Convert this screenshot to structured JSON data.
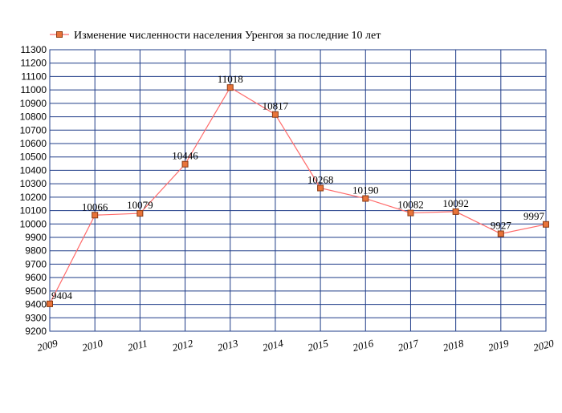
{
  "chart_data": {
    "type": "line",
    "title": "",
    "xlabel": "",
    "ylabel": "",
    "categories": [
      "2009",
      "2010",
      "2011",
      "2012",
      "2013",
      "2014",
      "2015",
      "2016",
      "2017",
      "2018",
      "2019",
      "2020"
    ],
    "series": [
      {
        "name": "Изменение численности населения Уренгоя за последние 10 лет",
        "values": [
          9404,
          10066,
          10079,
          10446,
          11018,
          10817,
          10268,
          10190,
          10082,
          10092,
          9927,
          9997
        ],
        "color": "#ff6b6b",
        "marker_color": "#e8733a"
      }
    ],
    "data_labels": [
      "9404",
      "10066",
      "10079",
      "10446",
      "11018",
      "10817",
      "10268",
      "10190",
      "10082",
      "10092",
      "9927",
      "9997"
    ],
    "ylim": [
      9200,
      11300
    ],
    "y_ticks": [
      9200,
      9300,
      9400,
      9500,
      9600,
      9700,
      9800,
      9900,
      10000,
      10100,
      10200,
      10300,
      10400,
      10500,
      10600,
      10700,
      10800,
      10900,
      11000,
      11100,
      11200,
      11300
    ],
    "grid": true,
    "grid_color": "#1f3c88",
    "legend_position": "top"
  }
}
